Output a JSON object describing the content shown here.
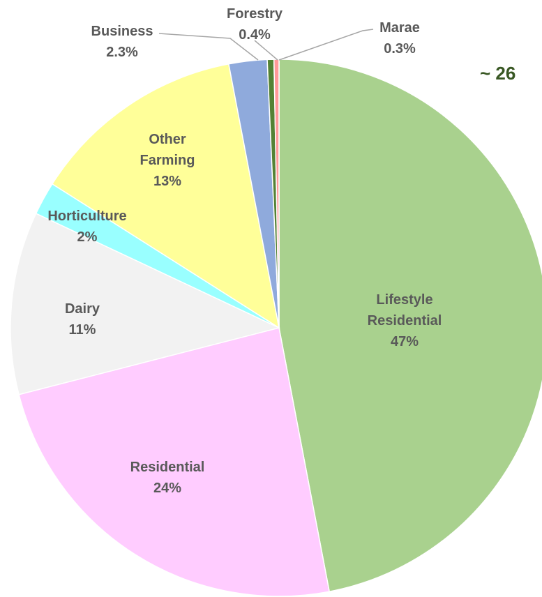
{
  "chart_data": {
    "type": "pie",
    "annotation": "~ 26",
    "categories": [
      "Lifestyle Residential",
      "Residential",
      "Dairy",
      "Horticulture",
      "Other Farming",
      "Business",
      "Forestry",
      "Marae"
    ],
    "values": [
      47,
      24,
      11,
      2,
      13,
      2.3,
      0.4,
      0.3
    ],
    "value_labels": [
      "47%",
      "24%",
      "11%",
      "2%",
      "13%",
      "2.3%",
      "0.4%",
      "0.3%"
    ],
    "colors": [
      "#a9d18e",
      "#ffccff",
      "#f2f2f2",
      "#99ffff",
      "#ffff99",
      "#8faadc",
      "#548235",
      "#ff9999"
    ]
  }
}
